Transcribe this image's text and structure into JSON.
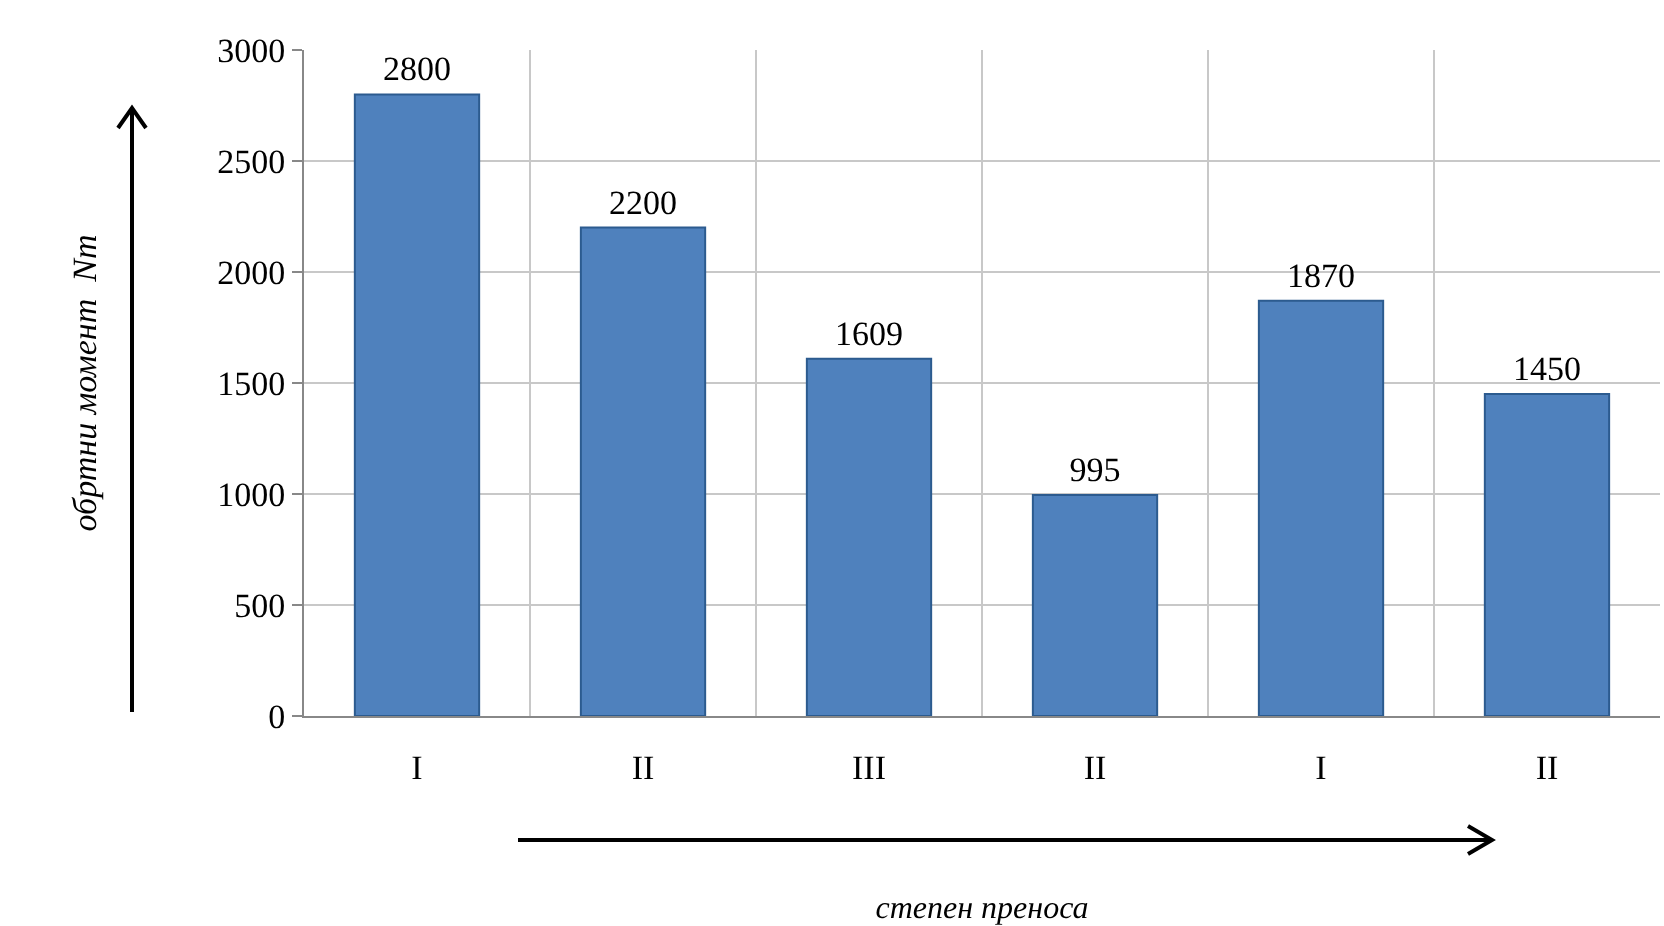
{
  "chart_data": {
    "type": "bar",
    "categories": [
      "I",
      "II",
      "III",
      "II",
      "I",
      "II"
    ],
    "values": [
      2800,
      2200,
      1609,
      995,
      1870,
      1450
    ],
    "color": "#4f81bd",
    "ylim": [
      0,
      3000
    ],
    "yticks": [
      0,
      500,
      1000,
      1500,
      2000,
      2500,
      3000
    ],
    "grid": true,
    "data_labels": true,
    "xlabel": "степен преноса",
    "ylabel": "обртни момент  Nm"
  }
}
